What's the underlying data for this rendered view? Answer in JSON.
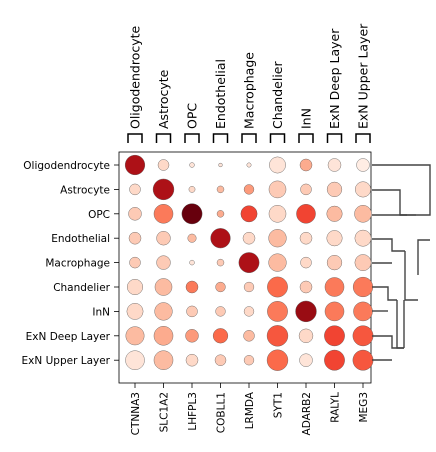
{
  "chart_data": {
    "type": "dotplot",
    "groups": [
      "Oligodendrocyte",
      "Astrocyte",
      "OPC",
      "Endothelial",
      "Macrophage",
      "Chandelier",
      "InN",
      "ExN Deep Layer",
      "ExN Upper Layer"
    ],
    "rows": [
      "Oligodendrocyte",
      "Astrocyte",
      "OPC",
      "Endothelial",
      "Macrophage",
      "Chandelier",
      "InN",
      "ExN Deep Layer",
      "ExN Upper Layer"
    ],
    "genes": [
      "CTNNA3",
      "SLC1A2",
      "LHFPL3",
      "COBLL1",
      "LRMDA",
      "SYT1",
      "ADARB2",
      "RALYL",
      "MEG3"
    ],
    "fraction": [
      [
        0.8,
        0.25,
        0.05,
        0.03,
        0.04,
        0.55,
        0.3,
        0.35,
        0.35
      ],
      [
        0.25,
        0.9,
        0.08,
        0.1,
        0.2,
        0.6,
        0.25,
        0.45,
        0.5
      ],
      [
        0.35,
        0.75,
        0.85,
        0.1,
        0.55,
        0.6,
        0.75,
        0.5,
        0.6
      ],
      [
        0.3,
        0.4,
        0.15,
        0.8,
        0.3,
        0.65,
        0.3,
        0.5,
        0.55
      ],
      [
        0.25,
        0.4,
        0.05,
        0.1,
        0.85,
        0.65,
        0.25,
        0.45,
        0.55
      ],
      [
        0.5,
        0.6,
        0.3,
        0.2,
        0.2,
        0.85,
        0.3,
        0.75,
        0.8
      ],
      [
        0.55,
        0.65,
        0.25,
        0.2,
        0.2,
        0.85,
        0.9,
        0.75,
        0.75
      ],
      [
        0.7,
        0.75,
        0.35,
        0.45,
        0.25,
        0.9,
        0.4,
        0.85,
        0.85
      ],
      [
        0.75,
        0.75,
        0.3,
        0.25,
        0.2,
        0.9,
        0.35,
        0.85,
        0.85
      ]
    ],
    "mean_expression": [
      [
        0.85,
        0.15,
        0.1,
        0.1,
        0.1,
        0.1,
        0.3,
        0.1,
        0.05
      ],
      [
        0.15,
        0.85,
        0.15,
        0.25,
        0.35,
        0.2,
        0.2,
        0.2,
        0.15
      ],
      [
        0.2,
        0.45,
        1.0,
        0.3,
        0.6,
        0.15,
        0.6,
        0.25,
        0.25
      ],
      [
        0.2,
        0.2,
        0.25,
        0.85,
        0.15,
        0.25,
        0.15,
        0.15,
        0.15
      ],
      [
        0.2,
        0.2,
        0.1,
        0.2,
        0.85,
        0.25,
        0.15,
        0.2,
        0.2
      ],
      [
        0.15,
        0.25,
        0.45,
        0.3,
        0.2,
        0.5,
        0.2,
        0.45,
        0.45
      ],
      [
        0.15,
        0.25,
        0.2,
        0.2,
        0.15,
        0.45,
        0.9,
        0.45,
        0.45
      ],
      [
        0.25,
        0.3,
        0.35,
        0.5,
        0.25,
        0.55,
        0.15,
        0.6,
        0.55
      ],
      [
        0.1,
        0.25,
        0.15,
        0.2,
        0.2,
        0.5,
        0.1,
        0.6,
        0.55
      ]
    ],
    "dendrogram": "right",
    "grid": false
  }
}
